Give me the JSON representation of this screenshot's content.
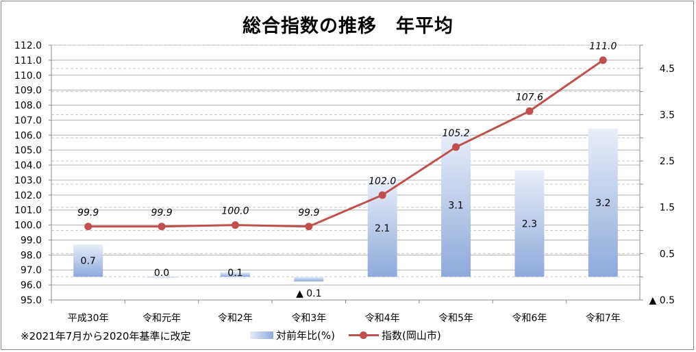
{
  "chart_data": {
    "type": "bar+line",
    "title": "総合指数の推移　年平均",
    "categories": [
      "平成30年",
      "令和元年",
      "令和2年",
      "令和3年",
      "令和4年",
      "令和5年",
      "令和6年",
      "令和7年"
    ],
    "series": [
      {
        "name": "対前年比(%)",
        "type": "bar",
        "axis": "right",
        "values": [
          0.7,
          0.0,
          0.1,
          -0.1,
          2.1,
          3.1,
          2.3,
          3.2
        ],
        "labels": [
          "0.7",
          "0.0",
          "0.1",
          "▲ 0.1",
          "2.1",
          "3.1",
          "2.3",
          "3.2"
        ],
        "color": "#8ea9db"
      },
      {
        "name": "指数(岡山市)",
        "type": "line",
        "axis": "left",
        "values": [
          99.9,
          99.9,
          100.0,
          99.9,
          102.0,
          105.2,
          107.6,
          111.0
        ],
        "labels": [
          "99.9",
          "99.9",
          "100.0",
          "99.9",
          "102.0",
          "105.2",
          "107.6",
          "111.0"
        ],
        "color": "#c0504d"
      }
    ],
    "y_left": {
      "range": [
        95.0,
        112.0
      ],
      "ticks": [
        "95.0",
        "96.0",
        "97.0",
        "98.0",
        "99.0",
        "100.0",
        "101.0",
        "102.0",
        "103.0",
        "104.0",
        "105.0",
        "106.0",
        "107.0",
        "108.0",
        "109.0",
        "110.0",
        "111.0",
        "112.0"
      ]
    },
    "y_right": {
      "range": [
        -0.5,
        5.0
      ],
      "ticks": [
        {
          "v": -0.5,
          "label": "▲ 0.5"
        },
        {
          "v": 0.5,
          "label": "0.5"
        },
        {
          "v": 1.5,
          "label": "1.5"
        },
        {
          "v": 2.5,
          "label": "2.5"
        },
        {
          "v": 3.5,
          "label": "3.5"
        },
        {
          "v": 4.5,
          "label": "4.5"
        }
      ]
    },
    "grid": true,
    "legend": "bottom",
    "note": "※2021年7月から2020年基準に改定"
  }
}
